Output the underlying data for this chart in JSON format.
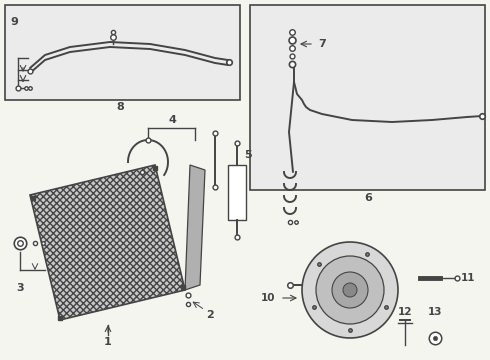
{
  "bg_color": "#f5f5f0",
  "line_color": "#444444",
  "fig_width": 4.9,
  "fig_height": 3.6,
  "dpi": 100
}
